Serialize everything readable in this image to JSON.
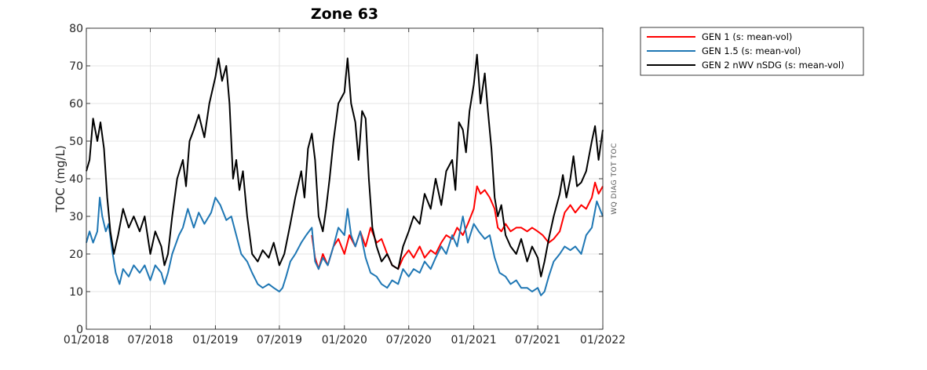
{
  "chart_data": {
    "type": "line",
    "title": "Zone 63",
    "ylabel": "TOC (mg/L)",
    "side_label": "WQ DIAG TOT TOC",
    "ylim": [
      0,
      80
    ],
    "yticks": [
      0,
      10,
      20,
      30,
      40,
      50,
      60,
      70,
      80
    ],
    "xlim": [
      "2018-01-01",
      "2022-01-01"
    ],
    "xticks": [
      "01/2018",
      "07/2018",
      "01/2019",
      "07/2019",
      "01/2020",
      "07/2020",
      "01/2021",
      "07/2021",
      "01/2022"
    ],
    "grid": true,
    "legend_position": "outside-top-right",
    "series": [
      {
        "name": "GEN 1 (s: mean-vol)",
        "color": "#ff0000",
        "points": [
          [
            "2019-10-01",
            25
          ],
          [
            "2019-10-10",
            19
          ],
          [
            "2019-10-20",
            16
          ],
          [
            "2019-11-01",
            20
          ],
          [
            "2019-11-15",
            17
          ],
          [
            "2019-12-01",
            22
          ],
          [
            "2019-12-15",
            24
          ],
          [
            "2020-01-01",
            20
          ],
          [
            "2020-01-15",
            25
          ],
          [
            "2020-02-01",
            22
          ],
          [
            "2020-02-15",
            26
          ],
          [
            "2020-03-01",
            22
          ],
          [
            "2020-03-15",
            27
          ],
          [
            "2020-04-01",
            23
          ],
          [
            "2020-04-15",
            24
          ],
          [
            "2020-05-01",
            20
          ],
          [
            "2020-05-15",
            17
          ],
          [
            "2020-06-01",
            16
          ],
          [
            "2020-06-15",
            19
          ],
          [
            "2020-07-01",
            21
          ],
          [
            "2020-07-15",
            19
          ],
          [
            "2020-08-01",
            22
          ],
          [
            "2020-08-15",
            19
          ],
          [
            "2020-09-01",
            21
          ],
          [
            "2020-09-15",
            20
          ],
          [
            "2020-10-01",
            23
          ],
          [
            "2020-10-15",
            25
          ],
          [
            "2020-11-01",
            24
          ],
          [
            "2020-11-15",
            27
          ],
          [
            "2020-12-01",
            25
          ],
          [
            "2020-12-15",
            28
          ],
          [
            "2021-01-01",
            32
          ],
          [
            "2021-01-10",
            38
          ],
          [
            "2021-01-20",
            36
          ],
          [
            "2021-02-01",
            37
          ],
          [
            "2021-02-15",
            35
          ],
          [
            "2021-03-01",
            32
          ],
          [
            "2021-03-10",
            27
          ],
          [
            "2021-03-20",
            26
          ],
          [
            "2021-04-01",
            28
          ],
          [
            "2021-04-15",
            26
          ],
          [
            "2021-05-01",
            27
          ],
          [
            "2021-05-15",
            27
          ],
          [
            "2021-06-01",
            26
          ],
          [
            "2021-06-15",
            27
          ],
          [
            "2021-07-01",
            26
          ],
          [
            "2021-07-15",
            25
          ],
          [
            "2021-08-01",
            23
          ],
          [
            "2021-08-15",
            24
          ],
          [
            "2021-09-01",
            26
          ],
          [
            "2021-09-15",
            31
          ],
          [
            "2021-10-01",
            33
          ],
          [
            "2021-10-15",
            31
          ],
          [
            "2021-11-01",
            33
          ],
          [
            "2021-11-15",
            32
          ],
          [
            "2021-12-01",
            35
          ],
          [
            "2021-12-10",
            39
          ],
          [
            "2021-12-20",
            36
          ],
          [
            "2022-01-01",
            38
          ]
        ]
      },
      {
        "name": "GEN 1.5 (s: mean-vol)",
        "color": "#1f77b4",
        "points": [
          [
            "2018-01-01",
            23
          ],
          [
            "2018-01-10",
            26
          ],
          [
            "2018-01-20",
            23
          ],
          [
            "2018-02-01",
            26
          ],
          [
            "2018-02-08",
            35
          ],
          [
            "2018-02-15",
            30
          ],
          [
            "2018-02-25",
            26
          ],
          [
            "2018-03-05",
            28
          ],
          [
            "2018-03-15",
            21
          ],
          [
            "2018-03-25",
            15
          ],
          [
            "2018-04-05",
            12
          ],
          [
            "2018-04-15",
            16
          ],
          [
            "2018-05-01",
            14
          ],
          [
            "2018-05-15",
            17
          ],
          [
            "2018-06-01",
            15
          ],
          [
            "2018-06-15",
            17
          ],
          [
            "2018-07-01",
            13
          ],
          [
            "2018-07-15",
            17
          ],
          [
            "2018-08-01",
            15
          ],
          [
            "2018-08-10",
            12
          ],
          [
            "2018-08-20",
            15
          ],
          [
            "2018-09-01",
            20
          ],
          [
            "2018-09-20",
            25
          ],
          [
            "2018-10-01",
            27
          ],
          [
            "2018-10-15",
            32
          ],
          [
            "2018-11-01",
            27
          ],
          [
            "2018-11-15",
            31
          ],
          [
            "2018-12-01",
            28
          ],
          [
            "2018-12-20",
            31
          ],
          [
            "2019-01-01",
            35
          ],
          [
            "2019-01-15",
            33
          ],
          [
            "2019-02-01",
            29
          ],
          [
            "2019-02-15",
            30
          ],
          [
            "2019-03-01",
            25
          ],
          [
            "2019-03-15",
            20
          ],
          [
            "2019-04-01",
            18
          ],
          [
            "2019-04-15",
            15
          ],
          [
            "2019-05-01",
            12
          ],
          [
            "2019-05-15",
            11
          ],
          [
            "2019-06-01",
            12
          ],
          [
            "2019-06-15",
            11
          ],
          [
            "2019-07-01",
            10
          ],
          [
            "2019-07-10",
            11
          ],
          [
            "2019-07-20",
            14
          ],
          [
            "2019-08-01",
            18
          ],
          [
            "2019-08-15",
            20
          ],
          [
            "2019-09-01",
            23
          ],
          [
            "2019-09-15",
            25
          ],
          [
            "2019-10-01",
            27
          ],
          [
            "2019-10-10",
            18
          ],
          [
            "2019-10-20",
            16
          ],
          [
            "2019-11-01",
            19
          ],
          [
            "2019-11-15",
            17
          ],
          [
            "2019-12-01",
            22
          ],
          [
            "2019-12-15",
            27
          ],
          [
            "2020-01-01",
            25
          ],
          [
            "2020-01-10",
            32
          ],
          [
            "2020-01-20",
            25
          ],
          [
            "2020-02-01",
            22
          ],
          [
            "2020-02-15",
            26
          ],
          [
            "2020-03-01",
            19
          ],
          [
            "2020-03-15",
            15
          ],
          [
            "2020-04-01",
            14
          ],
          [
            "2020-04-15",
            12
          ],
          [
            "2020-05-01",
            11
          ],
          [
            "2020-05-15",
            13
          ],
          [
            "2020-06-01",
            12
          ],
          [
            "2020-06-15",
            16
          ],
          [
            "2020-07-01",
            14
          ],
          [
            "2020-07-15",
            16
          ],
          [
            "2020-08-01",
            15
          ],
          [
            "2020-08-15",
            18
          ],
          [
            "2020-09-01",
            16
          ],
          [
            "2020-09-15",
            19
          ],
          [
            "2020-10-01",
            22
          ],
          [
            "2020-10-15",
            20
          ],
          [
            "2020-11-01",
            25
          ],
          [
            "2020-11-15",
            22
          ],
          [
            "2020-12-01",
            30
          ],
          [
            "2020-12-15",
            23
          ],
          [
            "2021-01-01",
            28
          ],
          [
            "2021-01-15",
            26
          ],
          [
            "2021-02-01",
            24
          ],
          [
            "2021-02-15",
            25
          ],
          [
            "2021-03-01",
            19
          ],
          [
            "2021-03-15",
            15
          ],
          [
            "2021-04-01",
            14
          ],
          [
            "2021-04-15",
            12
          ],
          [
            "2021-05-01",
            13
          ],
          [
            "2021-05-15",
            11
          ],
          [
            "2021-06-01",
            11
          ],
          [
            "2021-06-15",
            10
          ],
          [
            "2021-07-01",
            11
          ],
          [
            "2021-07-10",
            9
          ],
          [
            "2021-07-20",
            10
          ],
          [
            "2021-08-01",
            14
          ],
          [
            "2021-08-15",
            18
          ],
          [
            "2021-09-01",
            20
          ],
          [
            "2021-09-15",
            22
          ],
          [
            "2021-10-01",
            21
          ],
          [
            "2021-10-15",
            22
          ],
          [
            "2021-11-01",
            20
          ],
          [
            "2021-11-15",
            25
          ],
          [
            "2021-12-01",
            27
          ],
          [
            "2021-12-15",
            34
          ],
          [
            "2022-01-01",
            30
          ]
        ]
      },
      {
        "name": "GEN 2 nWV nSDG (s: mean-vol)",
        "color": "#000000",
        "points": [
          [
            "2018-01-01",
            42
          ],
          [
            "2018-01-10",
            45
          ],
          [
            "2018-01-20",
            56
          ],
          [
            "2018-02-01",
            50
          ],
          [
            "2018-02-10",
            55
          ],
          [
            "2018-02-20",
            48
          ],
          [
            "2018-03-01",
            35
          ],
          [
            "2018-03-10",
            26
          ],
          [
            "2018-03-20",
            20
          ],
          [
            "2018-04-01",
            25
          ],
          [
            "2018-04-15",
            32
          ],
          [
            "2018-05-01",
            27
          ],
          [
            "2018-05-15",
            30
          ],
          [
            "2018-06-01",
            26
          ],
          [
            "2018-06-15",
            30
          ],
          [
            "2018-07-01",
            20
          ],
          [
            "2018-07-15",
            26
          ],
          [
            "2018-08-01",
            22
          ],
          [
            "2018-08-10",
            17
          ],
          [
            "2018-08-20",
            20
          ],
          [
            "2018-09-01",
            30
          ],
          [
            "2018-09-15",
            40
          ],
          [
            "2018-10-01",
            45
          ],
          [
            "2018-10-10",
            38
          ],
          [
            "2018-10-20",
            50
          ],
          [
            "2018-11-01",
            53
          ],
          [
            "2018-11-15",
            57
          ],
          [
            "2018-12-01",
            51
          ],
          [
            "2018-12-15",
            60
          ],
          [
            "2019-01-01",
            67
          ],
          [
            "2019-01-10",
            72
          ],
          [
            "2019-01-20",
            66
          ],
          [
            "2019-02-01",
            70
          ],
          [
            "2019-02-10",
            60
          ],
          [
            "2019-02-20",
            40
          ],
          [
            "2019-03-01",
            45
          ],
          [
            "2019-03-10",
            37
          ],
          [
            "2019-03-20",
            42
          ],
          [
            "2019-04-01",
            30
          ],
          [
            "2019-04-15",
            20
          ],
          [
            "2019-05-01",
            18
          ],
          [
            "2019-05-15",
            21
          ],
          [
            "2019-06-01",
            19
          ],
          [
            "2019-06-15",
            23
          ],
          [
            "2019-07-01",
            17
          ],
          [
            "2019-07-15",
            20
          ],
          [
            "2019-08-01",
            28
          ],
          [
            "2019-08-15",
            35
          ],
          [
            "2019-09-01",
            42
          ],
          [
            "2019-09-10",
            35
          ],
          [
            "2019-09-20",
            48
          ],
          [
            "2019-10-01",
            52
          ],
          [
            "2019-10-10",
            45
          ],
          [
            "2019-10-20",
            30
          ],
          [
            "2019-11-01",
            26
          ],
          [
            "2019-11-10",
            32
          ],
          [
            "2019-11-20",
            40
          ],
          [
            "2019-12-01",
            50
          ],
          [
            "2019-12-15",
            60
          ],
          [
            "2020-01-01",
            63
          ],
          [
            "2020-01-10",
            72
          ],
          [
            "2020-01-20",
            60
          ],
          [
            "2020-02-01",
            55
          ],
          [
            "2020-02-10",
            45
          ],
          [
            "2020-02-20",
            58
          ],
          [
            "2020-03-01",
            56
          ],
          [
            "2020-03-10",
            40
          ],
          [
            "2020-03-20",
            27
          ],
          [
            "2020-04-01",
            22
          ],
          [
            "2020-04-15",
            18
          ],
          [
            "2020-05-01",
            20
          ],
          [
            "2020-05-15",
            17
          ],
          [
            "2020-06-01",
            16
          ],
          [
            "2020-06-15",
            22
          ],
          [
            "2020-07-01",
            26
          ],
          [
            "2020-07-15",
            30
          ],
          [
            "2020-08-01",
            28
          ],
          [
            "2020-08-15",
            36
          ],
          [
            "2020-09-01",
            32
          ],
          [
            "2020-09-15",
            40
          ],
          [
            "2020-10-01",
            33
          ],
          [
            "2020-10-15",
            42
          ],
          [
            "2020-11-01",
            45
          ],
          [
            "2020-11-10",
            37
          ],
          [
            "2020-11-20",
            55
          ],
          [
            "2020-12-01",
            53
          ],
          [
            "2020-12-10",
            47
          ],
          [
            "2020-12-20",
            58
          ],
          [
            "2021-01-01",
            65
          ],
          [
            "2021-01-10",
            73
          ],
          [
            "2021-01-20",
            60
          ],
          [
            "2021-02-01",
            68
          ],
          [
            "2021-02-10",
            58
          ],
          [
            "2021-02-20",
            48
          ],
          [
            "2021-03-01",
            35
          ],
          [
            "2021-03-10",
            30
          ],
          [
            "2021-03-20",
            33
          ],
          [
            "2021-04-01",
            25
          ],
          [
            "2021-04-15",
            22
          ],
          [
            "2021-05-01",
            20
          ],
          [
            "2021-05-15",
            24
          ],
          [
            "2021-06-01",
            18
          ],
          [
            "2021-06-15",
            22
          ],
          [
            "2021-07-01",
            19
          ],
          [
            "2021-07-10",
            14
          ],
          [
            "2021-07-20",
            18
          ],
          [
            "2021-08-01",
            24
          ],
          [
            "2021-08-15",
            30
          ],
          [
            "2021-09-01",
            36
          ],
          [
            "2021-09-10",
            41
          ],
          [
            "2021-09-20",
            35
          ],
          [
            "2021-10-01",
            40
          ],
          [
            "2021-10-10",
            46
          ],
          [
            "2021-10-20",
            38
          ],
          [
            "2021-11-01",
            39
          ],
          [
            "2021-11-15",
            42
          ],
          [
            "2021-12-01",
            50
          ],
          [
            "2021-12-10",
            54
          ],
          [
            "2021-12-20",
            45
          ],
          [
            "2022-01-01",
            53
          ]
        ]
      }
    ]
  }
}
